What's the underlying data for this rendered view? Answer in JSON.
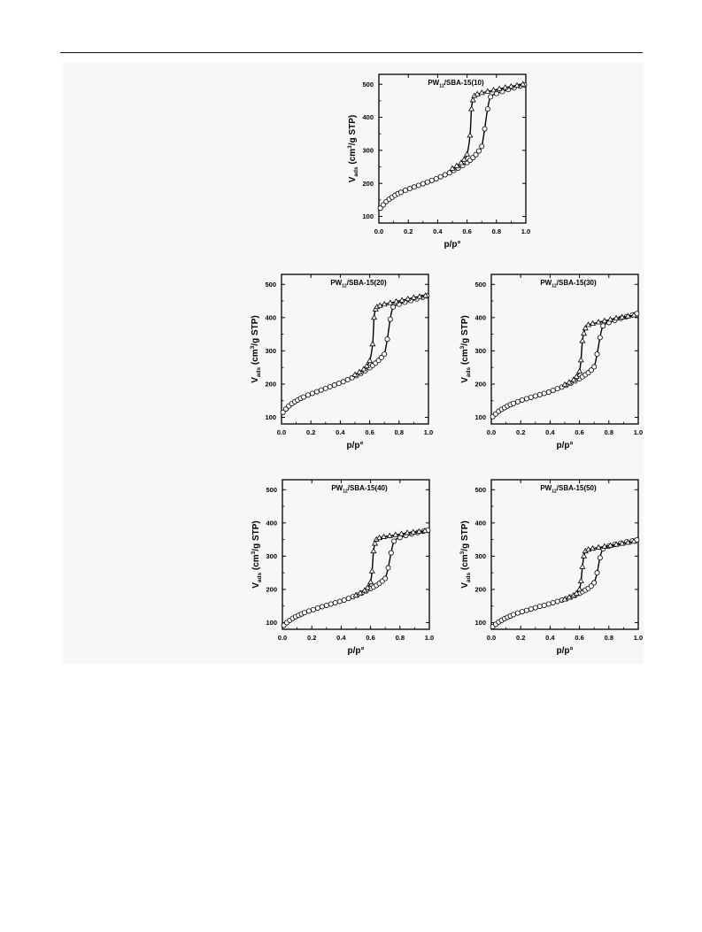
{
  "chart_data": [
    {
      "type": "scatter",
      "title": "PW12/SBA-15(10)",
      "title_parts": {
        "base": "PW",
        "sub": "12",
        "rest": "/SBA-15(10)"
      },
      "xlabel": "p/p°",
      "ylabel": "Vads (cm3/g STP)",
      "xlim": [
        0,
        1.0
      ],
      "ylim": [
        80,
        530
      ],
      "xticks": [
        "0.0",
        "0.2",
        "0.4",
        "0.6",
        "0.8",
        "1.0"
      ],
      "yticks": [
        "100",
        "200",
        "300",
        "400",
        "500"
      ],
      "grid": false,
      "series": [
        {
          "marker": "circle",
          "x": [
            0.01,
            0.03,
            0.05,
            0.07,
            0.09,
            0.11,
            0.13,
            0.15,
            0.18,
            0.21,
            0.24,
            0.27,
            0.3,
            0.33,
            0.36,
            0.39,
            0.42,
            0.45,
            0.48,
            0.51,
            0.54,
            0.57,
            0.6,
            0.62,
            0.64,
            0.66,
            0.68,
            0.7,
            0.72,
            0.74,
            0.76,
            0.8,
            0.84,
            0.88,
            0.92,
            0.96,
            0.99
          ],
          "y": [
            125,
            135,
            145,
            152,
            158,
            164,
            169,
            173,
            179,
            184,
            189,
            194,
            199,
            204,
            209,
            214,
            220,
            226,
            232,
            239,
            246,
            254,
            263,
            270,
            278,
            287,
            298,
            312,
            365,
            425,
            462,
            472,
            478,
            484,
            489,
            494,
            498
          ]
        },
        {
          "marker": "triangle",
          "x": [
            0.5,
            0.53,
            0.56,
            0.58,
            0.6,
            0.62,
            0.63,
            0.64,
            0.65,
            0.67,
            0.7,
            0.74,
            0.78,
            0.82,
            0.86,
            0.9,
            0.94,
            0.98
          ],
          "y": [
            245,
            253,
            262,
            272,
            288,
            345,
            425,
            452,
            465,
            470,
            474,
            478,
            482,
            486,
            490,
            493,
            496,
            500
          ]
        }
      ]
    },
    {
      "type": "scatter",
      "title": "PW12/SBA-15(20)",
      "title_parts": {
        "base": "PW",
        "sub": "12",
        "rest": "/SBA-15(20)"
      },
      "xlabel": "p/p°",
      "ylabel": "Vads (cm3/g STP)",
      "xlim": [
        0,
        1.0
      ],
      "ylim": [
        80,
        530
      ],
      "xticks": [
        "0.0",
        "0.2",
        "0.4",
        "0.6",
        "0.8",
        "1.0"
      ],
      "yticks": [
        "100",
        "200",
        "300",
        "400",
        "500"
      ],
      "grid": false,
      "series": [
        {
          "marker": "circle",
          "x": [
            0.01,
            0.03,
            0.05,
            0.07,
            0.09,
            0.11,
            0.13,
            0.15,
            0.18,
            0.21,
            0.24,
            0.27,
            0.3,
            0.33,
            0.36,
            0.39,
            0.42,
            0.45,
            0.48,
            0.51,
            0.54,
            0.57,
            0.6,
            0.62,
            0.64,
            0.66,
            0.68,
            0.7,
            0.72,
            0.74,
            0.76,
            0.8,
            0.84,
            0.88,
            0.92,
            0.96,
            0.99
          ],
          "y": [
            115,
            125,
            134,
            141,
            147,
            152,
            157,
            161,
            167,
            172,
            177,
            182,
            187,
            192,
            197,
            202,
            207,
            213,
            219,
            225,
            232,
            240,
            249,
            256,
            263,
            271,
            280,
            290,
            335,
            395,
            432,
            440,
            446,
            451,
            456,
            461,
            465
          ]
        },
        {
          "marker": "triangle",
          "x": [
            0.5,
            0.53,
            0.56,
            0.58,
            0.6,
            0.62,
            0.63,
            0.64,
            0.65,
            0.67,
            0.7,
            0.74,
            0.78,
            0.82,
            0.86,
            0.9,
            0.94,
            0.98
          ],
          "y": [
            228,
            236,
            245,
            254,
            270,
            320,
            400,
            425,
            432,
            436,
            440,
            444,
            448,
            452,
            456,
            460,
            463,
            466
          ]
        }
      ]
    },
    {
      "type": "scatter",
      "title": "PW12/SBA-15(30)",
      "title_parts": {
        "base": "PW",
        "sub": "12",
        "rest": "/SBA-15(30)"
      },
      "xlabel": "p/p°",
      "ylabel": "Vads (cm3/g STP)",
      "xlim": [
        0,
        1.0
      ],
      "ylim": [
        80,
        530
      ],
      "xticks": [
        "0.0",
        "0.2",
        "0.4",
        "0.6",
        "0.8",
        "1.0"
      ],
      "yticks": [
        "100",
        "200",
        "300",
        "400",
        "500"
      ],
      "grid": false,
      "series": [
        {
          "marker": "circle",
          "x": [
            0.01,
            0.03,
            0.05,
            0.07,
            0.09,
            0.11,
            0.13,
            0.15,
            0.18,
            0.21,
            0.24,
            0.27,
            0.3,
            0.33,
            0.36,
            0.39,
            0.42,
            0.45,
            0.48,
            0.51,
            0.54,
            0.57,
            0.6,
            0.62,
            0.64,
            0.66,
            0.68,
            0.7,
            0.72,
            0.74,
            0.76,
            0.8,
            0.84,
            0.88,
            0.92,
            0.96,
            0.99
          ],
          "y": [
            102,
            110,
            118,
            124,
            129,
            134,
            138,
            142,
            147,
            152,
            156,
            160,
            164,
            168,
            172,
            176,
            181,
            186,
            191,
            196,
            202,
            209,
            216,
            222,
            228,
            234,
            242,
            252,
            290,
            340,
            375,
            385,
            392,
            398,
            403,
            408,
            412
          ]
        },
        {
          "marker": "triangle",
          "x": [
            0.5,
            0.53,
            0.56,
            0.58,
            0.6,
            0.61,
            0.62,
            0.63,
            0.64,
            0.66,
            0.69,
            0.73,
            0.77,
            0.81,
            0.85,
            0.89,
            0.93,
            0.97
          ],
          "y": [
            198,
            205,
            213,
            222,
            238,
            272,
            330,
            352,
            368,
            378,
            382,
            386,
            390,
            394,
            398,
            401,
            404,
            407
          ]
        }
      ]
    },
    {
      "type": "scatter",
      "title": "PW12/SBA-15(40)",
      "title_parts": {
        "base": "PW",
        "sub": "12",
        "rest": "/SBA-15(40)"
      },
      "xlabel": "p/p°",
      "ylabel": "Vads (cm3/g STP)",
      "xlim": [
        0,
        1.0
      ],
      "ylim": [
        80,
        530
      ],
      "xticks": [
        "0.0",
        "0.2",
        "0.4",
        "0.6",
        "0.8",
        "1.0"
      ],
      "yticks": [
        "100",
        "200",
        "300",
        "400",
        "500"
      ],
      "grid": false,
      "series": [
        {
          "marker": "circle",
          "x": [
            0.01,
            0.03,
            0.05,
            0.07,
            0.09,
            0.11,
            0.13,
            0.15,
            0.18,
            0.21,
            0.24,
            0.27,
            0.3,
            0.33,
            0.36,
            0.39,
            0.42,
            0.45,
            0.48,
            0.51,
            0.54,
            0.57,
            0.6,
            0.62,
            0.64,
            0.66,
            0.68,
            0.7,
            0.72,
            0.74,
            0.76,
            0.8,
            0.84,
            0.88,
            0.92,
            0.96,
            0.99
          ],
          "y": [
            92,
            100,
            107,
            113,
            118,
            122,
            126,
            130,
            135,
            139,
            144,
            148,
            152,
            156,
            160,
            164,
            168,
            173,
            178,
            183,
            189,
            195,
            202,
            207,
            212,
            218,
            225,
            233,
            265,
            310,
            345,
            356,
            362,
            367,
            371,
            375,
            378
          ]
        },
        {
          "marker": "triangle",
          "x": [
            0.5,
            0.53,
            0.56,
            0.58,
            0.6,
            0.61,
            0.62,
            0.63,
            0.64,
            0.66,
            0.69,
            0.73,
            0.77,
            0.81,
            0.85,
            0.89,
            0.93,
            0.97
          ],
          "y": [
            182,
            189,
            197,
            205,
            222,
            255,
            315,
            338,
            350,
            355,
            358,
            361,
            364,
            367,
            370,
            372,
            374,
            376
          ]
        }
      ]
    },
    {
      "type": "scatter",
      "title": "PW12/SBA-15(50)",
      "title_parts": {
        "base": "PW",
        "sub": "12",
        "rest": "/SBA-15(50)"
      },
      "xlabel": "p/p°",
      "ylabel": "Vads (cm3/g STP)",
      "xlim": [
        0,
        1.0
      ],
      "ylim": [
        80,
        530
      ],
      "xticks": [
        "0.0",
        "0.2",
        "0.4",
        "0.6",
        "0.8",
        "1.0"
      ],
      "yticks": [
        "100",
        "200",
        "300",
        "400",
        "500"
      ],
      "grid": false,
      "series": [
        {
          "marker": "circle",
          "x": [
            0.01,
            0.03,
            0.05,
            0.07,
            0.09,
            0.11,
            0.13,
            0.15,
            0.18,
            0.21,
            0.24,
            0.27,
            0.3,
            0.33,
            0.36,
            0.39,
            0.42,
            0.45,
            0.48,
            0.51,
            0.54,
            0.57,
            0.6,
            0.62,
            0.64,
            0.66,
            0.68,
            0.7,
            0.72,
            0.74,
            0.76,
            0.8,
            0.84,
            0.88,
            0.92,
            0.96,
            0.99
          ],
          "y": [
            88,
            95,
            102,
            107,
            112,
            116,
            120,
            124,
            129,
            133,
            137,
            141,
            145,
            149,
            152,
            156,
            160,
            164,
            168,
            172,
            177,
            182,
            188,
            193,
            198,
            203,
            210,
            220,
            250,
            295,
            322,
            330,
            335,
            339,
            343,
            346,
            349
          ]
        },
        {
          "marker": "triangle",
          "x": [
            0.5,
            0.53,
            0.56,
            0.58,
            0.6,
            0.61,
            0.62,
            0.63,
            0.64,
            0.66,
            0.69,
            0.73,
            0.77,
            0.81,
            0.85,
            0.89,
            0.93,
            0.97
          ],
          "y": [
            170,
            176,
            182,
            188,
            200,
            225,
            268,
            300,
            315,
            320,
            323,
            326,
            329,
            332,
            335,
            338,
            341,
            344
          ]
        }
      ]
    }
  ]
}
